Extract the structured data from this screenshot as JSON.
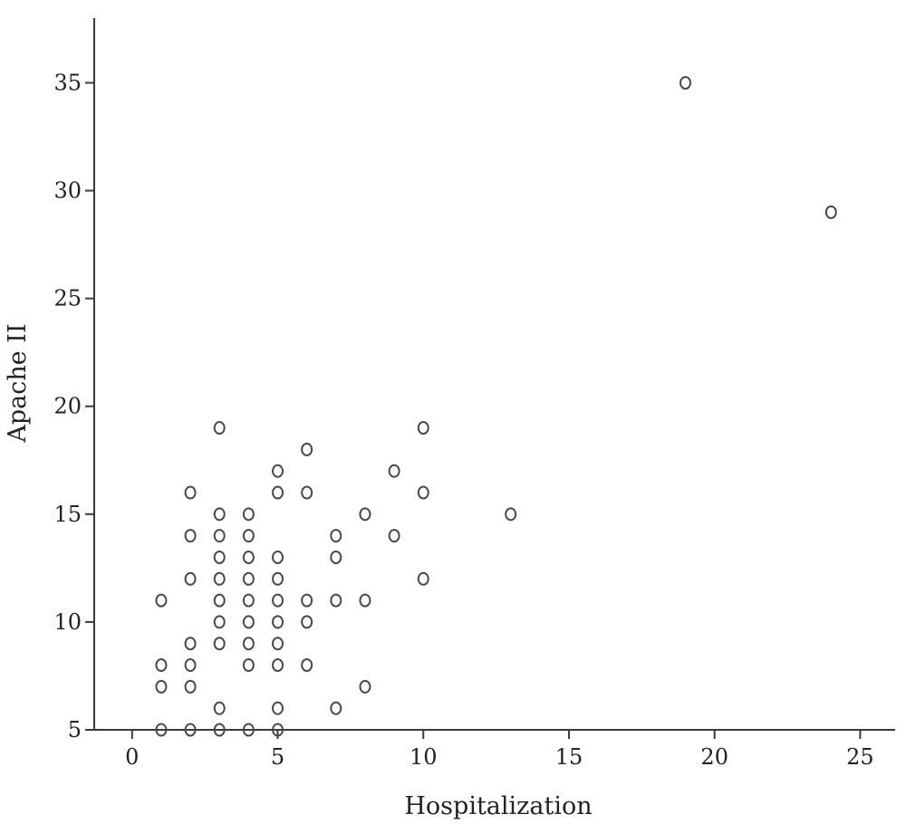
{
  "chart_data": {
    "type": "scatter",
    "title": "",
    "xlabel": "Hospitalization",
    "ylabel": "Apache II",
    "xlim": [
      -1.3,
      26.2
    ],
    "ylim": [
      5,
      38
    ],
    "xticks": [
      0,
      5,
      10,
      15,
      20,
      25
    ],
    "yticks": [
      5,
      10,
      15,
      20,
      25,
      30,
      35
    ],
    "grid": false,
    "series": [
      {
        "points": [
          [
            1,
            5
          ],
          [
            1,
            7
          ],
          [
            1,
            8
          ],
          [
            1,
            11
          ],
          [
            2,
            5
          ],
          [
            2,
            7
          ],
          [
            2,
            8
          ],
          [
            2,
            9
          ],
          [
            2,
            12
          ],
          [
            2,
            14
          ],
          [
            2,
            16
          ],
          [
            3,
            5
          ],
          [
            3,
            6
          ],
          [
            3,
            9
          ],
          [
            3,
            10
          ],
          [
            3,
            11
          ],
          [
            3,
            12
          ],
          [
            3,
            13
          ],
          [
            3,
            14
          ],
          [
            3,
            15
          ],
          [
            3,
            19
          ],
          [
            4,
            5
          ],
          [
            4,
            8
          ],
          [
            4,
            9
          ],
          [
            4,
            10
          ],
          [
            4,
            11
          ],
          [
            4,
            12
          ],
          [
            4,
            13
          ],
          [
            4,
            14
          ],
          [
            4,
            15
          ],
          [
            5,
            5
          ],
          [
            5,
            6
          ],
          [
            5,
            8
          ],
          [
            5,
            9
          ],
          [
            5,
            10
          ],
          [
            5,
            11
          ],
          [
            5,
            12
          ],
          [
            5,
            13
          ],
          [
            5,
            16
          ],
          [
            5,
            17
          ],
          [
            6,
            8
          ],
          [
            6,
            10
          ],
          [
            6,
            11
          ],
          [
            6,
            16
          ],
          [
            6,
            18
          ],
          [
            7,
            6
          ],
          [
            7,
            11
          ],
          [
            7,
            13
          ],
          [
            7,
            14
          ],
          [
            8,
            7
          ],
          [
            8,
            11
          ],
          [
            8,
            15
          ],
          [
            9,
            14
          ],
          [
            9,
            17
          ],
          [
            10,
            12
          ],
          [
            10,
            16
          ],
          [
            10,
            19
          ],
          [
            13,
            15
          ],
          [
            19,
            35
          ],
          [
            24,
            29
          ]
        ]
      }
    ]
  }
}
